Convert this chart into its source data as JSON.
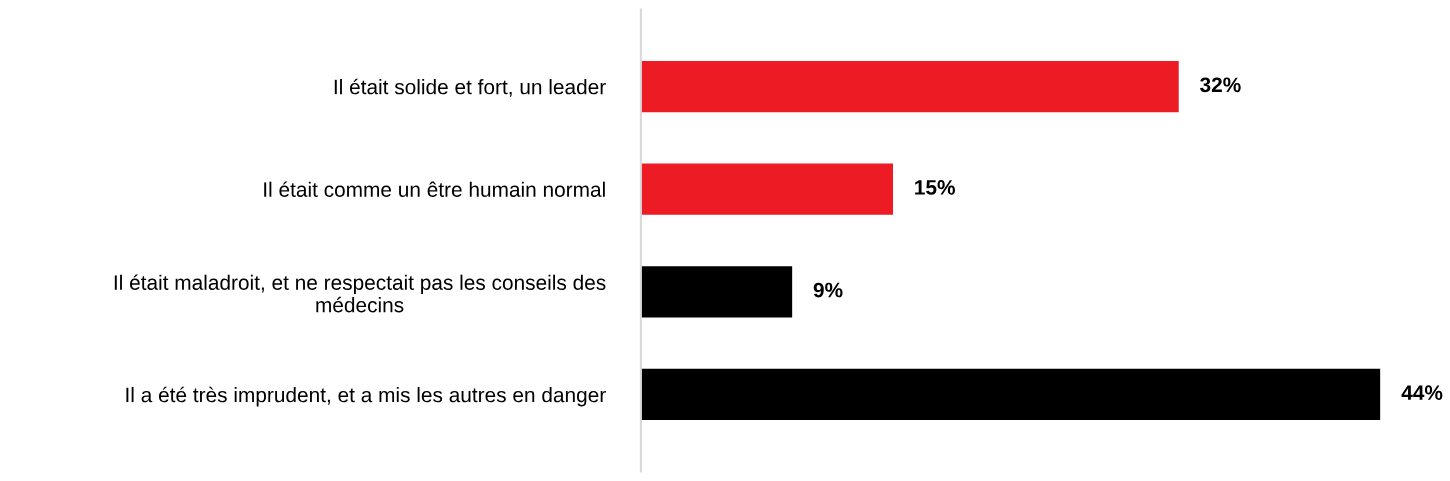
{
  "chart_data": {
    "type": "bar",
    "orientation": "horizontal",
    "categories": [
      "Il était solide et fort, un leader",
      "Il était comme un être humain normal",
      "Il était maladroit, et ne respectait pas les conseils des\nmédecins",
      "Il a été très imprudent, et a mis les autres en danger"
    ],
    "values": [
      32,
      15,
      9,
      44
    ],
    "colors": [
      "#ed1c24",
      "#ed1c24",
      "#000000",
      "#000000"
    ],
    "value_labels": [
      "32%",
      "15%",
      "9%",
      "44%"
    ],
    "grid": false,
    "legend": false
  }
}
